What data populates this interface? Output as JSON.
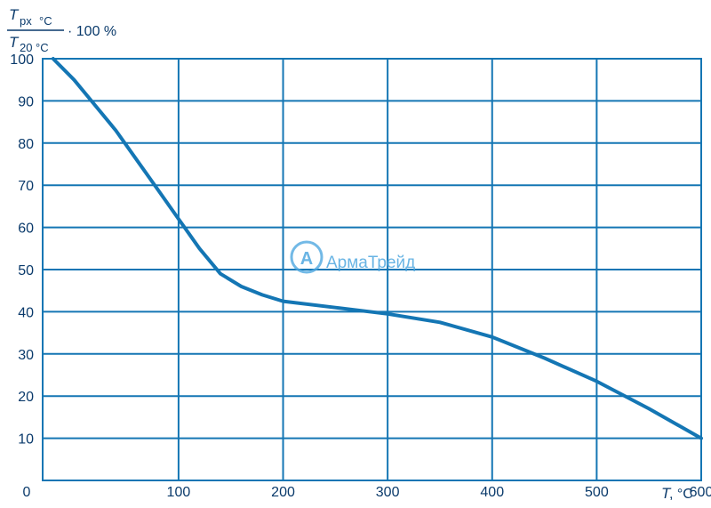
{
  "chart_data": {
    "type": "line",
    "y_title": {
      "numerator_var": "T",
      "numerator_sub": "px",
      "numerator_unit": "°C",
      "denominator_var": "T",
      "denominator_sub": "20",
      "denominator_unit": "°C",
      "suffix": "· 100 %"
    },
    "x_title": {
      "var": "T",
      "unit": ", °C"
    },
    "origin_label": "0",
    "xlim": [
      -30,
      600
    ],
    "ylim": [
      0,
      100
    ],
    "x_ticks": [
      100,
      200,
      300,
      400,
      500,
      600
    ],
    "y_ticks": [
      10,
      20,
      30,
      40,
      50,
      60,
      70,
      80,
      90,
      100
    ],
    "grid": true,
    "series": [
      {
        "points": [
          [
            -20,
            100
          ],
          [
            0,
            95
          ],
          [
            20,
            89
          ],
          [
            40,
            83
          ],
          [
            60,
            76
          ],
          [
            80,
            69
          ],
          [
            100,
            62
          ],
          [
            120,
            55
          ],
          [
            140,
            49
          ],
          [
            160,
            46
          ],
          [
            180,
            44
          ],
          [
            200,
            42.5
          ],
          [
            250,
            41
          ],
          [
            300,
            39.5
          ],
          [
            350,
            37.5
          ],
          [
            400,
            34
          ],
          [
            450,
            29
          ],
          [
            500,
            23.5
          ],
          [
            550,
            17
          ],
          [
            600,
            10
          ]
        ]
      }
    ],
    "colors": {
      "line": "#1476b4",
      "grid": "#1476b4",
      "text": "#0a3a6b"
    }
  },
  "watermark": {
    "text": "АрмаТрейд",
    "logo_letter": "A"
  }
}
